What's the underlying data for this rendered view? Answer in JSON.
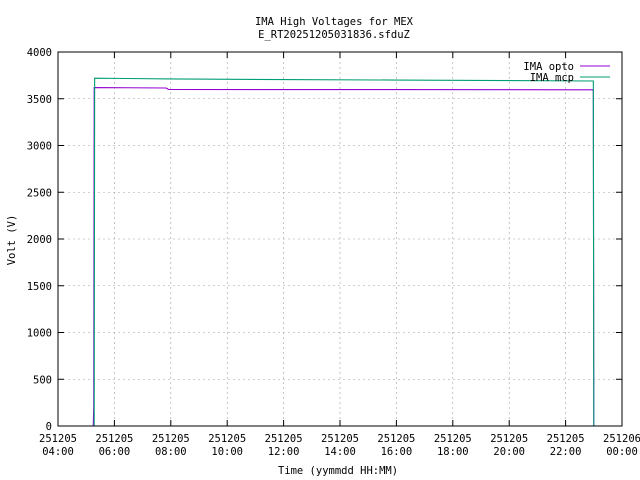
{
  "chart_data": {
    "type": "line",
    "title": "IMA High Voltages for MEX",
    "subtitle": "E_RT20251205031836.sfduZ",
    "xlabel": "Time (yymmdd HH:MM)",
    "ylabel": "Volt (V)",
    "xlim": [
      "251205 04:00",
      "251206 00:00"
    ],
    "ylim": [
      0,
      4000
    ],
    "grid": true,
    "legend_position": "top-right",
    "y_ticks": [
      "0",
      "500",
      "1000",
      "1500",
      "2000",
      "2500",
      "3000",
      "3500",
      "4000"
    ],
    "x_ticks": [
      {
        "date": "251205",
        "time": "04:00"
      },
      {
        "date": "251205",
        "time": "06:00"
      },
      {
        "date": "251205",
        "time": "08:00"
      },
      {
        "date": "251205",
        "time": "10:00"
      },
      {
        "date": "251205",
        "time": "12:00"
      },
      {
        "date": "251205",
        "time": "14:00"
      },
      {
        "date": "251205",
        "time": "16:00"
      },
      {
        "date": "251205",
        "time": "18:00"
      },
      {
        "date": "251205",
        "time": "20:00"
      },
      {
        "date": "251205",
        "time": "22:00"
      },
      {
        "date": "251206",
        "time": "00:00"
      }
    ],
    "series": [
      {
        "name": "IMA opto",
        "color": "#9400d3",
        "points": [
          {
            "t": "251205 05:15",
            "v": 0
          },
          {
            "t": "251205 05:16",
            "v": 200
          },
          {
            "t": "251205 05:17",
            "v": 3620
          },
          {
            "t": "251205 07:50",
            "v": 3615
          },
          {
            "t": "251205 07:55",
            "v": 3600
          },
          {
            "t": "251205 12:00",
            "v": 3598
          },
          {
            "t": "251205 16:00",
            "v": 3598
          },
          {
            "t": "251205 20:00",
            "v": 3597
          },
          {
            "t": "251205 22:59",
            "v": 3596
          },
          {
            "t": "251205 23:00",
            "v": 0
          }
        ]
      },
      {
        "name": "IMA mcp",
        "color": "#009e73",
        "points": [
          {
            "t": "251205 05:17",
            "v": 0
          },
          {
            "t": "251205 05:18",
            "v": 3720
          },
          {
            "t": "251205 06:00",
            "v": 3718
          },
          {
            "t": "251205 08:00",
            "v": 3712
          },
          {
            "t": "251205 12:00",
            "v": 3705
          },
          {
            "t": "251205 16:00",
            "v": 3700
          },
          {
            "t": "251205 20:00",
            "v": 3695
          },
          {
            "t": "251205 22:59",
            "v": 3690
          },
          {
            "t": "251205 23:00",
            "v": 0
          }
        ]
      }
    ]
  }
}
